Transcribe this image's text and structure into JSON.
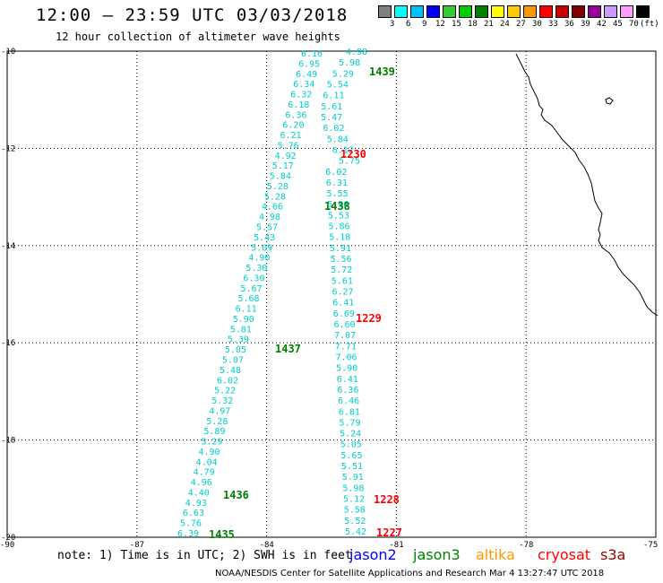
{
  "title": "12:00 – 23:59 UTC 03/03/2018",
  "subtitle": "12 hour collection of altimeter wave heights",
  "legend": {
    "colors": [
      "#808080",
      "#00ffff",
      "#00bfff",
      "#0000ff",
      "#33cc33",
      "#00cc00",
      "#008000",
      "#ffff00",
      "#ffcc00",
      "#ff9900",
      "#ff0000",
      "#cc0000",
      "#800000",
      "#990099",
      "#cc99ff",
      "#ff99ff",
      "#000000"
    ],
    "labels": [
      "3",
      "6",
      "9",
      "12",
      "15",
      "18",
      "21",
      "24",
      "27",
      "30",
      "33",
      "36",
      "39",
      "42",
      "45",
      "70",
      "(ft)"
    ]
  },
  "axes": {
    "lat_labels": [
      "-10",
      "-12",
      "-14",
      "-16",
      "-18",
      "-20"
    ],
    "lon_labels": [
      "-90",
      "-87",
      "-84",
      "-81",
      "-78",
      "-75"
    ]
  },
  "tracks": [
    {
      "id": "track-west-jason3",
      "color": "#00cccc",
      "values": [
        "6.16",
        "6.95",
        "6.49",
        "6.34",
        "6.32",
        "6.18",
        "6.36",
        "6.20",
        "6.21",
        "5.76",
        "4.92",
        "5.17",
        "5.84",
        "5.28",
        "5.28",
        "4.66",
        "4.98",
        "5.57",
        "5.43",
        "5.09",
        "4.90",
        "5.30",
        "6.30",
        "5.67",
        "5.68",
        "6.11",
        "5.90",
        "5.81",
        "5.39",
        "5.05",
        "5.07",
        "5.48",
        "6.02",
        "5.22",
        "5.32",
        "4.97",
        "5.28",
        "5.89",
        "5.29",
        "4.90",
        "4.04",
        "4.79",
        "4.96",
        "4.40",
        "4.93",
        "6.63",
        "5.76",
        "6.39"
      ]
    },
    {
      "id": "track-east-jason2",
      "color": "#00cccc",
      "values": [
        "4.98",
        "5.98",
        "5.29",
        "5.54",
        "6.11",
        "5.61",
        "5.47",
        "6.02",
        "5.84",
        "6.12",
        "5.75",
        "6.02",
        "6.31",
        "5.55",
        "5.96",
        "5.53",
        "5.86",
        "5.18",
        "5.91",
        "5.56",
        "5.72",
        "5.61",
        "6.27",
        "6.41",
        "6.69",
        "6.60",
        "7.07",
        "7.71",
        "7.06",
        "5.90",
        "6.41",
        "6.36",
        "6.46",
        "6.81",
        "5.79",
        "5.24",
        "5.05",
        "5.65",
        "5.51",
        "5.91",
        "5.98",
        "5.12",
        "5.58",
        "5.52",
        "5.42"
      ]
    }
  ],
  "time_labels": [
    {
      "text": "1439",
      "color": "#008000"
    },
    {
      "text": "1230",
      "color": "#ff0000"
    },
    {
      "text": "1438",
      "color": "#008000"
    },
    {
      "text": "1229",
      "color": "#ff0000"
    },
    {
      "text": "1437",
      "color": "#008000"
    },
    {
      "text": "1436",
      "color": "#008000"
    },
    {
      "text": "1228",
      "color": "#ff0000"
    },
    {
      "text": "1435",
      "color": "#008000"
    },
    {
      "text": "1227",
      "color": "#ff0000"
    }
  ],
  "note": "note: 1) Time is in UTC; 2) SWH is in feet",
  "satellites": [
    {
      "name": "jason2",
      "color": "#0000ff"
    },
    {
      "name": "jason3",
      "color": "#008000"
    },
    {
      "name": "altika",
      "color": "#ff9900"
    },
    {
      "name": "cryosat",
      "color": "#ff0000"
    },
    {
      "name": "s3a",
      "color": "#990000"
    }
  ],
  "footer": "NOAA/NESDIS Center for Satellite Applications and Research   Mar  4 13:27:47 UTC 2018"
}
